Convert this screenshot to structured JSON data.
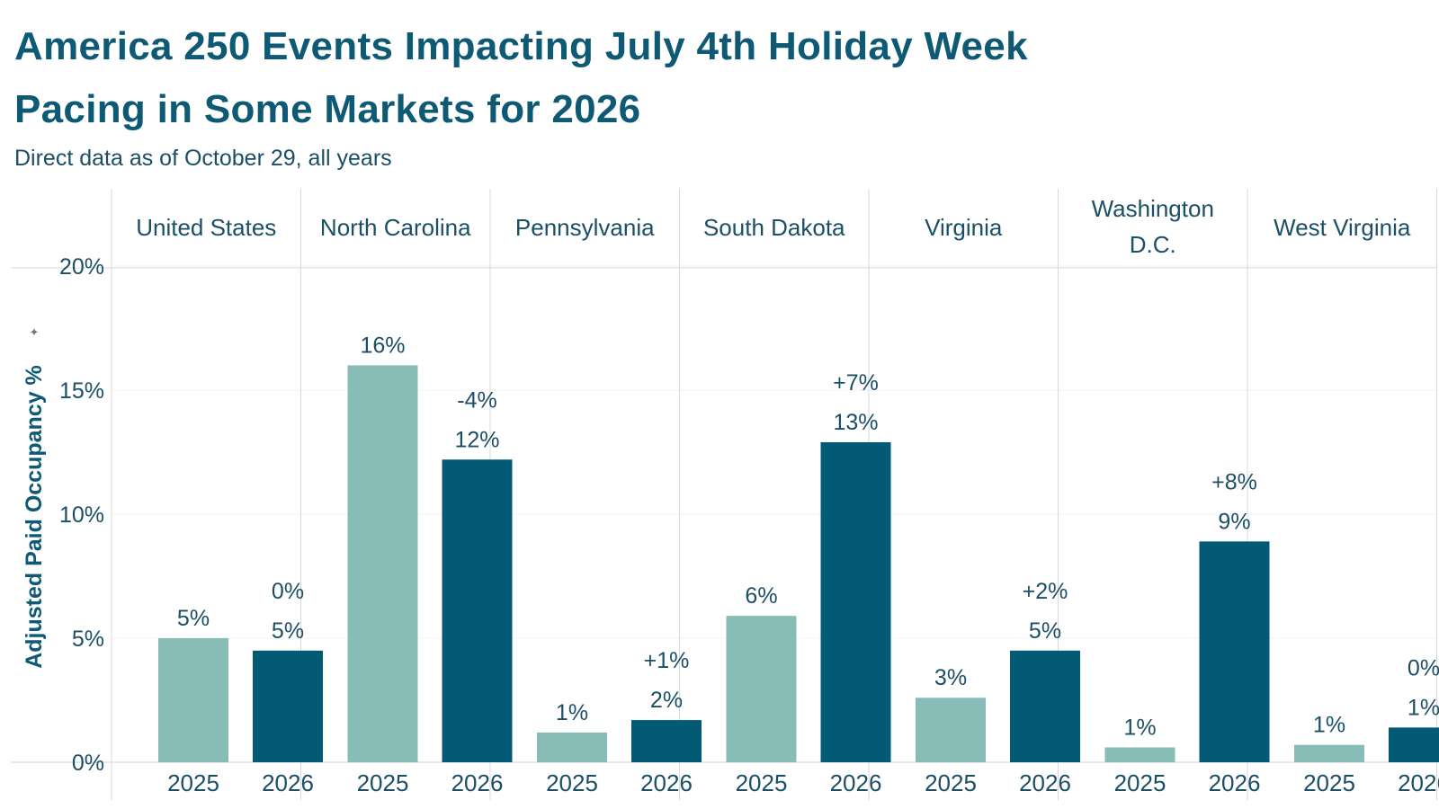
{
  "title_line1": "America 250 Events Impacting July 4th Holiday Week",
  "title_line2": "Pacing in Some Markets for 2026",
  "subtitle": "Direct data as of October 29, all years",
  "colors": {
    "bar_2025": "#88bcb6",
    "bar_2026": "#035a75",
    "text": "#1b4f66",
    "title": "#0e5a75",
    "grid": "#d9d9d9"
  },
  "chart_data": {
    "type": "bar",
    "title": "America 250 Events Impacting July 4th Holiday Week Pacing in Some Markets for 2026",
    "ylabel": "Adjusted Paid Occupancy %",
    "ylim": [
      0,
      20
    ],
    "yticks": [
      0,
      5,
      10,
      15,
      20
    ],
    "ytick_labels": [
      "0%",
      "5%",
      "10%",
      "15%",
      "20%"
    ],
    "series_names": [
      "2025",
      "2026"
    ],
    "markets": [
      {
        "name": [
          "United States"
        ],
        "values": [
          5.0,
          4.5
        ],
        "labels": [
          "5%",
          "5%"
        ],
        "change": "0%"
      },
      {
        "name": [
          "North Carolina"
        ],
        "values": [
          16.0,
          12.2
        ],
        "labels": [
          "16%",
          "12%"
        ],
        "change": "-4%"
      },
      {
        "name": [
          "Pennsylvania"
        ],
        "values": [
          1.2,
          1.7
        ],
        "labels": [
          "1%",
          "2%"
        ],
        "change": "+1%"
      },
      {
        "name": [
          "South Dakota"
        ],
        "values": [
          5.9,
          12.9
        ],
        "labels": [
          "6%",
          "13%"
        ],
        "change": "+7%"
      },
      {
        "name": [
          "Virginia"
        ],
        "values": [
          2.6,
          4.5
        ],
        "labels": [
          "3%",
          "5%"
        ],
        "change": "+2%"
      },
      {
        "name": [
          "Washington",
          "D.C."
        ],
        "values": [
          0.6,
          8.9
        ],
        "labels": [
          "1%",
          "9%"
        ],
        "change": "+8%"
      },
      {
        "name": [
          "West Virginia"
        ],
        "values": [
          0.7,
          1.4
        ],
        "labels": [
          "1%",
          "1%"
        ],
        "change": "0%"
      }
    ]
  }
}
